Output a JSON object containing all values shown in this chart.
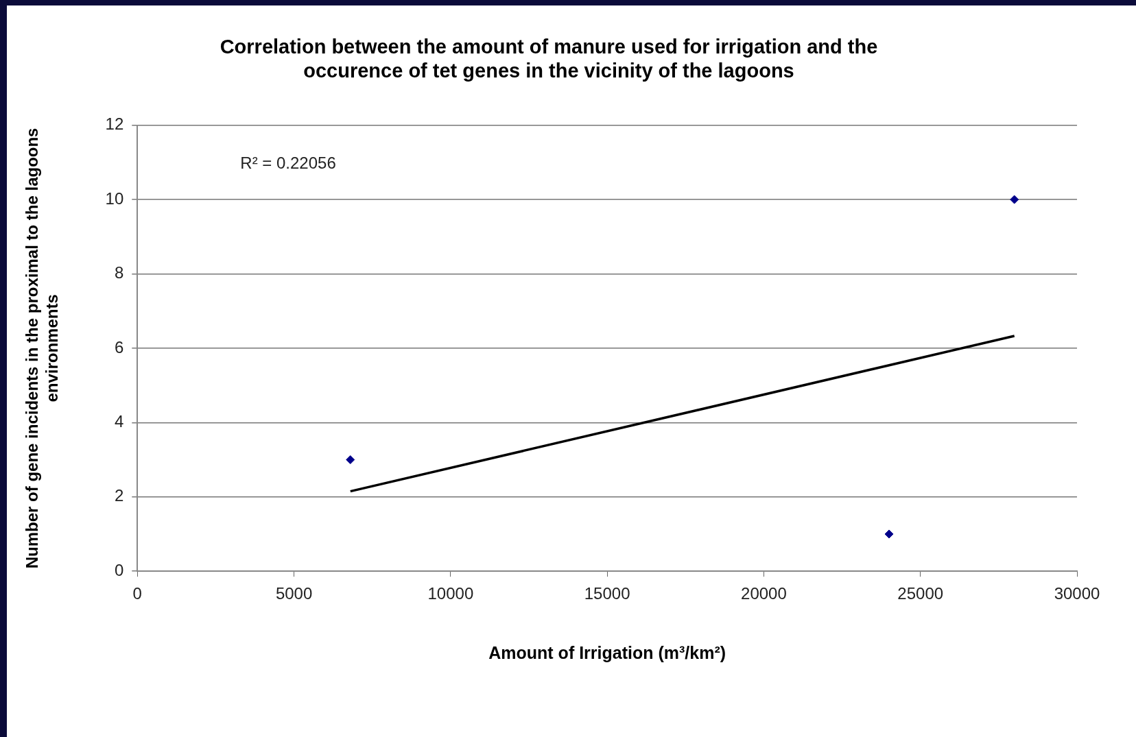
{
  "chart_data": {
    "type": "scatter",
    "title": "Correlation between the amount of manure used for irrigation and the occurence of tet genes in the vicinity of the lagoons",
    "xlabel": "Amount of Irrigation (m³/km²)",
    "ylabel": "Number of gene incidents in the proximal to the lagoons environments",
    "x": [
      6800,
      24000,
      28000
    ],
    "series": [
      {
        "color": "#00008b",
        "values": [
          3,
          1,
          10
        ],
        "marker": "diamond"
      },
      {
        "type": "line",
        "color": "#000000",
        "x": [
          6800,
          28000
        ],
        "values": [
          2.15,
          6.33
        ],
        "marker": "none",
        "line_style": "solid"
      }
    ],
    "annotations": [
      "R² = 0.22056"
    ],
    "xlim": [
      0,
      30000
    ],
    "xticks": [
      0,
      5000,
      10000,
      15000,
      20000,
      25000,
      30000
    ],
    "ylim": [
      0,
      12
    ],
    "yticks": [
      0,
      2,
      4,
      6,
      8,
      10,
      12
    ],
    "grid": "y",
    "legend": false
  }
}
